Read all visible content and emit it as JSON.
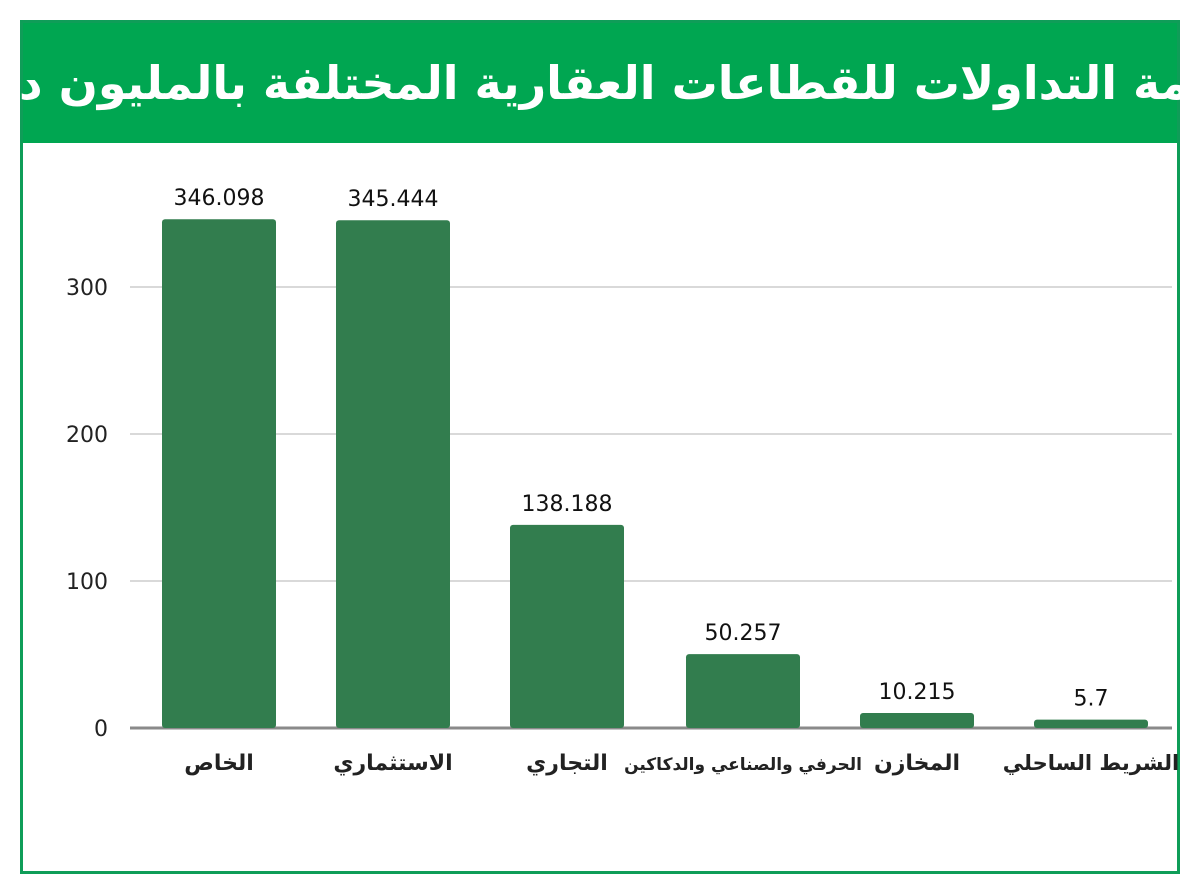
{
  "title": "قيمة التداولات للقطاعات العقارية المختلفة بالمليون د.ك",
  "colors": {
    "header": "#00a651",
    "bar": "#327d4e",
    "frame": "#0f9d58",
    "grid": "#d9d9d9"
  },
  "chart_data": {
    "type": "bar",
    "title": "قيمة التداولات للقطاعات العقارية المختلفة بالمليون د.ك",
    "categories": [
      "الخاص",
      "الاستثماري",
      "التجاري",
      "الحرفي والصناعي والدكاكين",
      "المخازن",
      "الشريط الساحلي"
    ],
    "values": [
      346.098,
      345.444,
      138.188,
      50.257,
      10.215,
      5.7
    ],
    "value_labels": [
      "346.098",
      "345.444",
      "138.188",
      "50.257",
      "10.215",
      "5.7"
    ],
    "yticks": [
      "0",
      "100",
      "200",
      "300"
    ],
    "ylim": [
      0,
      400
    ],
    "grid": true,
    "xlabel": "",
    "ylabel": ""
  }
}
